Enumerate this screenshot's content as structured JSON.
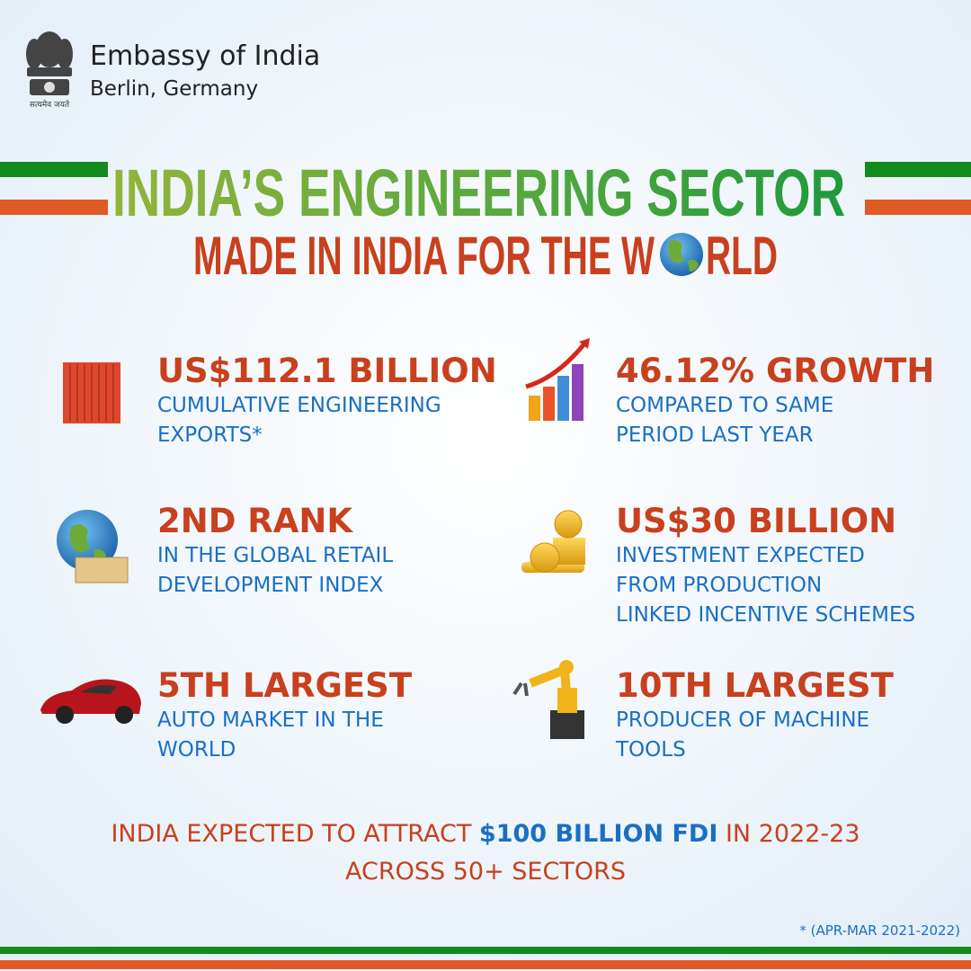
{
  "header": {
    "organization": "Embassy of India",
    "location": "Berlin, Germany",
    "motto": "सत्यमेव जयते"
  },
  "title": "INDIA’S ENGINEERING SECTOR",
  "subtitle": {
    "before_globe": "MADE IN INDIA FOR THE W",
    "after_globe": "RLD"
  },
  "stats": [
    {
      "headline": "US$112.1 BILLION",
      "description": [
        "CUMULATIVE ENGINEERING",
        "EXPORTS*"
      ]
    },
    {
      "headline": "46.12% GROWTH",
      "description": [
        "COMPARED TO SAME",
        "PERIOD LAST YEAR"
      ]
    },
    {
      "headline": "2ND RANK",
      "description": [
        "IN THE GLOBAL RETAIL",
        "DEVELOPMENT INDEX"
      ]
    },
    {
      "headline": "US$30 BILLION",
      "description": [
        "INVESTMENT EXPECTED",
        "FROM PRODUCTION",
        "LINKED INCENTIVE SCHEMES"
      ]
    },
    {
      "headline": "5TH LARGEST",
      "description": [
        "AUTO MARKET IN THE",
        "WORLD"
      ]
    },
    {
      "headline": "10TH LARGEST",
      "description": [
        "PRODUCER OF MACHINE",
        "TOOLS"
      ]
    }
  ],
  "footer": {
    "before": "INDIA EXPECTED TO ATTRACT ",
    "highlight": "$100 BILLION FDI",
    "after": " IN 2022-23",
    "second_line": "ACROSS 50+ SECTORS"
  },
  "note": "* (APR-MAR 2021-2022)"
}
